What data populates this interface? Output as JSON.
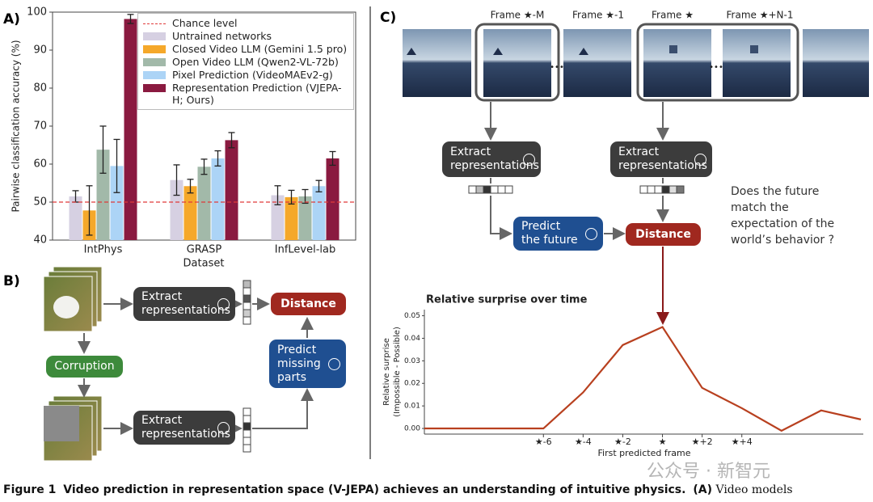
{
  "panels": {
    "a": "A)",
    "b": "B)",
    "c": "C)"
  },
  "chart_data": [
    {
      "type": "bar",
      "ylabel": "Pairwise classification accuracy (%)",
      "xlabel": "Dataset",
      "categories": [
        "IntPhys",
        "GRASP",
        "InfLevel-lab"
      ],
      "ylim": [
        40,
        100
      ],
      "yticks": [
        40,
        50,
        60,
        70,
        80,
        90,
        100
      ],
      "reference_line": {
        "name": "Chance level",
        "value": 50,
        "color": "#e03a3a"
      },
      "legend": "upper right",
      "series": [
        {
          "name": "Untrained networks",
          "color": "#d6d0e2",
          "values": [
            51.5,
            55.8,
            51.8
          ],
          "errors": [
            1.5,
            4,
            2.5
          ]
        },
        {
          "name": "Closed Video LLM (Gemini 1.5 pro)",
          "color": "#f5a82a",
          "values": [
            47.8,
            54.2,
            51.3
          ],
          "errors": [
            6.5,
            1.8,
            1.8
          ]
        },
        {
          "name": "Open Video LLM (Qwen2-VL-72b)",
          "color": "#a2b9a9",
          "values": [
            63.8,
            59.3,
            51.5
          ],
          "errors": [
            6.2,
            2,
            1.8
          ]
        },
        {
          "name": "Pixel Prediction (VideoMAEv2-g)",
          "color": "#acd4f6",
          "values": [
            59.5,
            61.5,
            54.2
          ],
          "errors": [
            7,
            2,
            1.5
          ]
        },
        {
          "name": "Representation Prediction (VJEPA-H; Ours)",
          "color": "#8a1a40",
          "values": [
            98.2,
            66.3,
            61.5
          ],
          "errors": [
            1.2,
            2,
            1.8
          ]
        }
      ]
    },
    {
      "type": "line",
      "title": "Relative surprise over time",
      "ylabel": [
        "Relative surprise",
        "(Impossible - Possible)"
      ],
      "xlabel": "First predicted frame",
      "x": [
        -12,
        -10,
        -8,
        -6,
        -4,
        -2,
        0,
        2,
        4,
        6,
        8,
        10
      ],
      "values": [
        0,
        0,
        0,
        0,
        0.016,
        0.037,
        0.045,
        0.018,
        0.009,
        -0.001,
        0.008,
        0.004
      ],
      "color": "#b8401f",
      "xlim": [
        -12,
        10
      ],
      "xticks": [
        {
          "value": -6,
          "label": "★-6"
        },
        {
          "value": -4,
          "label": "★-4"
        },
        {
          "value": -2,
          "label": "★-2"
        },
        {
          "value": 0,
          "label": "★"
        },
        {
          "value": 2,
          "label": "★+2"
        },
        {
          "value": 4,
          "label": "★+4"
        }
      ],
      "ylim": [
        -0.0025,
        0.052
      ],
      "yticks": [
        {
          "value": 0,
          "label": "0.00"
        },
        {
          "value": 0.01,
          "label": "0.01"
        },
        {
          "value": 0.02,
          "label": "0.02"
        },
        {
          "value": 0.03,
          "label": "0.03"
        },
        {
          "value": 0.04,
          "label": "0.04"
        },
        {
          "value": 0.05,
          "label": "0.05"
        }
      ]
    }
  ],
  "panel_b": {
    "extract_top": "Extract representations",
    "corruption": "Corruption",
    "extract_bottom": "Extract representations",
    "predict": "Predict missing parts",
    "distance": "Distance"
  },
  "panel_c": {
    "frames": [
      "Frame ★-M",
      "Frame ★-1",
      "Frame ★",
      "Frame ★+N-1"
    ],
    "extract_left": "Extract representations",
    "extract_right": "Extract representations",
    "predict": "Predict the future",
    "distance": "Distance",
    "question": "Does the future match the expectation of the world’s behavior ?"
  },
  "caption": {
    "label": "Figure 1",
    "bold": "Video prediction in representation space (V-JEPA) achieves an understanding of intuitive physics.",
    "panel": "(A)",
    "text": "Video models"
  },
  "watermark": "公众号 · 新智元"
}
